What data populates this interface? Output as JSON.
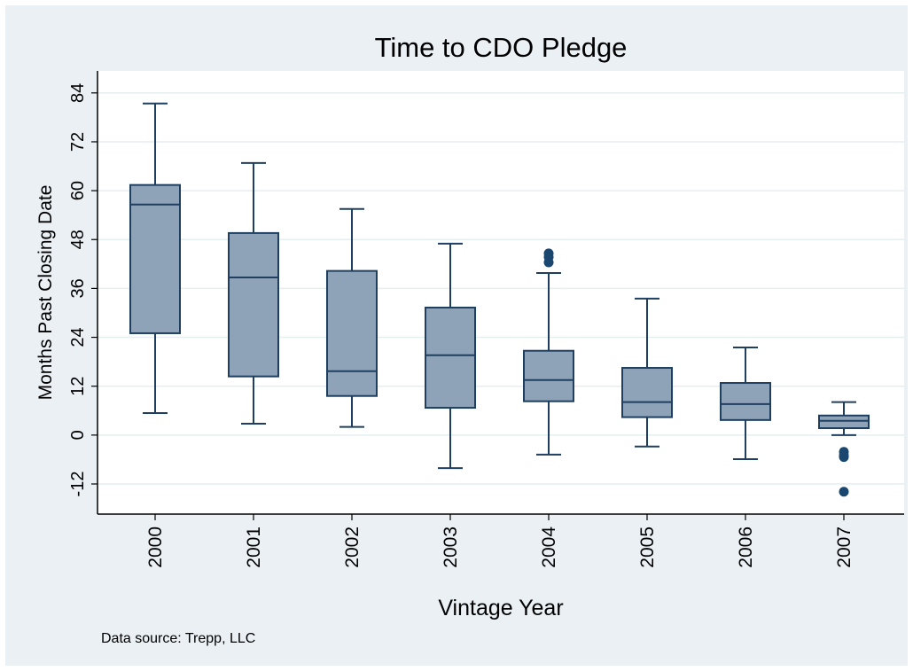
{
  "chart_data": {
    "type": "box",
    "title": "Time to CDO Pledge",
    "x_label": "Vintage Year",
    "y_label": "Months Past Closing Date",
    "note": "Data source: Trepp, LLC",
    "categories": [
      "2000",
      "2001",
      "2002",
      "2003",
      "2004",
      "2005",
      "2006",
      "2007"
    ],
    "whisker_low": [
      5.4,
      2.8,
      2.0,
      -8.1,
      -4.8,
      -2.8,
      -5.9,
      0
    ],
    "q1": [
      25.0,
      14.4,
      9.6,
      6.7,
      8.3,
      4.4,
      3.7,
      1.7
    ],
    "median": [
      56.6,
      38.7,
      15.7,
      19.6,
      13.5,
      8.1,
      7.6,
      3.5
    ],
    "q3": [
      61.4,
      49.6,
      40.3,
      31.3,
      20.7,
      16.5,
      12.8,
      4.8
    ],
    "whisker_high": [
      81.4,
      66.8,
      55.5,
      47.0,
      39.8,
      33.5,
      21.5,
      8.1
    ],
    "outliers": [
      [],
      [],
      [],
      [],
      [
        44.6,
        43.7,
        42.4
      ],
      [],
      [],
      [
        -4.1,
        -5.0,
        -5.4,
        -13.9
      ]
    ],
    "color": "#8ea2b8",
    "line_color": "#1f3f60",
    "outlier_color": "#1a476f",
    "ylim": [
      -19.4,
      89.4
    ],
    "yticks": [
      -12,
      0,
      12,
      24,
      36,
      48,
      60,
      72,
      84
    ],
    "grid": true
  }
}
